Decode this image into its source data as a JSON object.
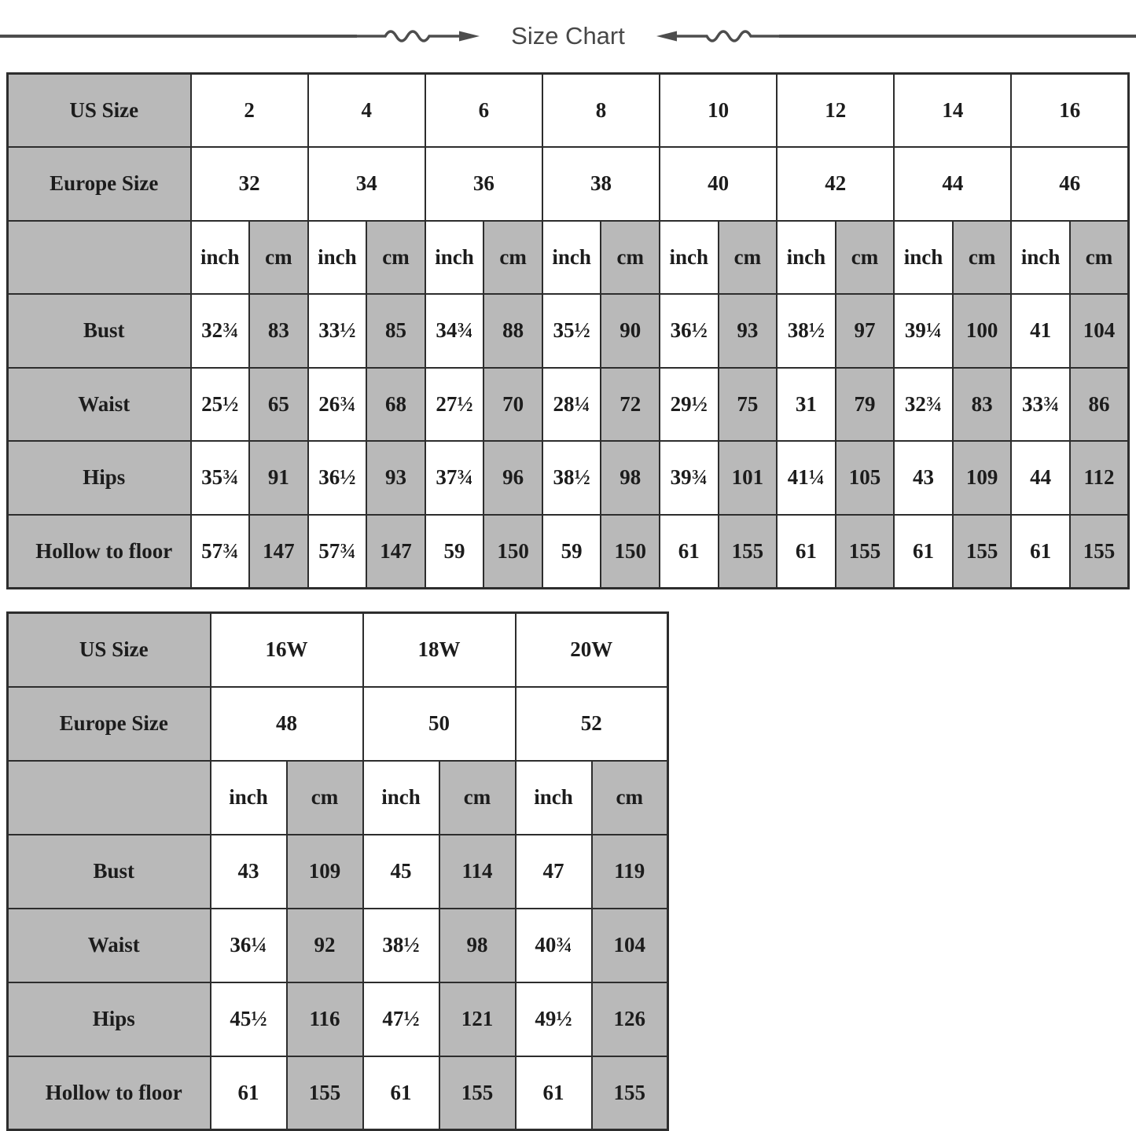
{
  "title": "Size Chart",
  "colors": {
    "cell_gray": "#b9b9b9",
    "border": "#2d2d2d",
    "decoration": "#4d4d4d",
    "text": "#1c1c1c",
    "title_text": "#484848"
  },
  "decorations": {
    "left": "line-squiggle-arrow-pointing-right",
    "right": "arrow-pointing-left-squiggle-line"
  },
  "chart_data": [
    {
      "type": "table",
      "name": "standard-sizes",
      "row_labels": {
        "us": "US Size",
        "europe": "Europe Size",
        "units": [
          "inch",
          "cm"
        ]
      },
      "us_sizes": [
        "2",
        "4",
        "6",
        "8",
        "10",
        "12",
        "14",
        "16"
      ],
      "europe_sizes": [
        "32",
        "34",
        "36",
        "38",
        "40",
        "42",
        "44",
        "46"
      ],
      "measurements": [
        {
          "label": "Bust",
          "values": [
            "32¾",
            "83",
            "33½",
            "85",
            "34¾",
            "88",
            "35½",
            "90",
            "36½",
            "93",
            "38½",
            "97",
            "39¼",
            "100",
            "41",
            "104"
          ]
        },
        {
          "label": "Waist",
          "values": [
            "25½",
            "65",
            "26¾",
            "68",
            "27½",
            "70",
            "28¼",
            "72",
            "29½",
            "75",
            "31",
            "79",
            "32¾",
            "83",
            "33¾",
            "86"
          ]
        },
        {
          "label": "Hips",
          "values": [
            "35¾",
            "91",
            "36½",
            "93",
            "37¾",
            "96",
            "38½",
            "98",
            "39¾",
            "101",
            "41¼",
            "105",
            "43",
            "109",
            "44",
            "112"
          ]
        },
        {
          "label": "Hollow to floor",
          "values": [
            "57¾",
            "147",
            "57¾",
            "147",
            "59",
            "150",
            "59",
            "150",
            "61",
            "155",
            "61",
            "155",
            "61",
            "155",
            "61",
            "155"
          ]
        }
      ]
    },
    {
      "type": "table",
      "name": "plus-sizes",
      "row_labels": {
        "us": "US Size",
        "europe": "Europe Size",
        "units": [
          "inch",
          "cm"
        ]
      },
      "us_sizes": [
        "16W",
        "18W",
        "20W"
      ],
      "europe_sizes": [
        "48",
        "50",
        "52"
      ],
      "measurements": [
        {
          "label": "Bust",
          "values": [
            "43",
            "109",
            "45",
            "114",
            "47",
            "119"
          ]
        },
        {
          "label": "Waist",
          "values": [
            "36¼",
            "92",
            "38½",
            "98",
            "40¾",
            "104"
          ]
        },
        {
          "label": "Hips",
          "values": [
            "45½",
            "116",
            "47½",
            "121",
            "49½",
            "126"
          ]
        },
        {
          "label": "Hollow to floor",
          "values": [
            "61",
            "155",
            "61",
            "155",
            "61",
            "155"
          ]
        }
      ]
    }
  ]
}
